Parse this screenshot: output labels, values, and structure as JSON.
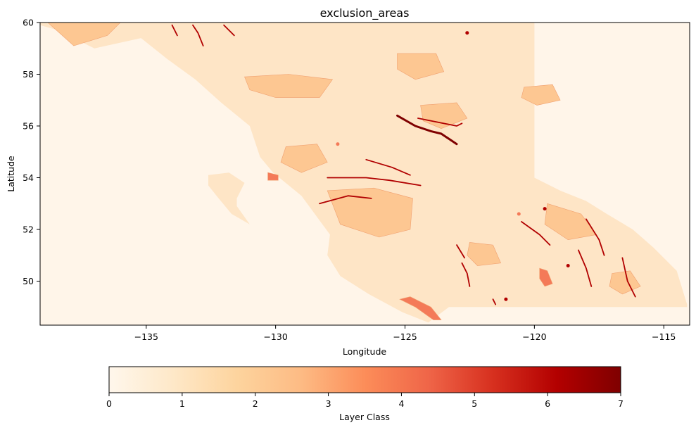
{
  "chart_data": {
    "type": "heatmap",
    "title": "exclusion_areas",
    "xlabel": "Longitude",
    "ylabel": "Latitude",
    "xlim": [
      -139.1,
      -114.0
    ],
    "ylim": [
      48.3,
      60.0
    ],
    "xticks": [
      -135,
      -130,
      -125,
      -120,
      -115
    ],
    "xtick_labels": [
      "−135",
      "−130",
      "−125",
      "−120",
      "−115"
    ],
    "yticks": [
      50,
      52,
      54,
      56,
      58,
      60
    ],
    "ytick_labels": [
      "50",
      "52",
      "54",
      "56",
      "58",
      "60"
    ],
    "grid": false,
    "colormap": "OrRd",
    "colormap_stops": [
      "#fff7ec",
      "#fee8c8",
      "#fdd49e",
      "#fdbb84",
      "#fc8d59",
      "#ef6548",
      "#d7301f",
      "#b30000",
      "#7f0000"
    ],
    "colorbar": {
      "label": "Layer Class",
      "range": [
        0,
        7
      ],
      "ticks": [
        0,
        1,
        2,
        3,
        4,
        5,
        6,
        7
      ],
      "tick_labels": [
        "0",
        "1",
        "2",
        "3",
        "4",
        "5",
        "6",
        "7"
      ],
      "orientation": "horizontal"
    },
    "class_colors": {
      "0": "#fff5e9",
      "1": "#fee5c6",
      "2": "#fdc792",
      "4": "#f47a58",
      "6": "#b10000",
      "7": "#7f0000"
    },
    "regions": [
      {
        "name": "province",
        "class": 1,
        "polygon": [
          [
            -139.1,
            60.0
          ],
          [
            -120.0,
            60.0
          ],
          [
            -120.0,
            54.0
          ],
          [
            -119.0,
            53.5
          ],
          [
            -118.0,
            53.1
          ],
          [
            -117.2,
            52.6
          ],
          [
            -116.2,
            52.0
          ],
          [
            -115.4,
            51.3
          ],
          [
            -114.5,
            50.4
          ],
          [
            -114.1,
            49.1
          ],
          [
            -114.1,
            49.0
          ],
          [
            -123.3,
            49.0
          ],
          [
            -124.1,
            48.4
          ],
          [
            -125.1,
            48.8
          ],
          [
            -126.4,
            49.5
          ],
          [
            -127.5,
            50.2
          ],
          [
            -128.0,
            51.0
          ],
          [
            -127.9,
            51.8
          ],
          [
            -129.0,
            53.3
          ],
          [
            -130.1,
            54.2
          ],
          [
            -130.6,
            54.8
          ],
          [
            -131.0,
            56.0
          ],
          [
            -132.1,
            56.9
          ],
          [
            -133.1,
            57.8
          ],
          [
            -134.2,
            58.6
          ],
          [
            -135.2,
            59.4
          ],
          [
            -137.0,
            59.0
          ],
          [
            -138.4,
            59.7
          ],
          [
            -139.1,
            59.9
          ]
        ]
      },
      {
        "name": "haida-gwaii",
        "class": 1,
        "polygon": [
          [
            -132.6,
            54.1
          ],
          [
            -131.8,
            54.2
          ],
          [
            -131.2,
            53.8
          ],
          [
            -131.5,
            53.2
          ],
          [
            -131.5,
            52.9
          ],
          [
            -131.0,
            52.2
          ],
          [
            -131.7,
            52.6
          ],
          [
            -132.2,
            53.2
          ],
          [
            -132.6,
            53.7
          ]
        ]
      },
      {
        "name": "exclusion-zone-a",
        "class": 2,
        "polygon": [
          [
            -131.2,
            57.9
          ],
          [
            -129.5,
            58.0
          ],
          [
            -127.8,
            57.8
          ],
          [
            -128.3,
            57.1
          ],
          [
            -130.0,
            57.1
          ],
          [
            -131.0,
            57.4
          ]
        ]
      },
      {
        "name": "exclusion-zone-b",
        "class": 2,
        "polygon": [
          [
            -128.0,
            53.5
          ],
          [
            -126.2,
            53.6
          ],
          [
            -124.7,
            53.2
          ],
          [
            -124.8,
            52.0
          ],
          [
            -126.0,
            51.7
          ],
          [
            -127.5,
            52.2
          ]
        ]
      },
      {
        "name": "exclusion-zone-c",
        "class": 2,
        "polygon": [
          [
            -125.3,
            58.8
          ],
          [
            -123.8,
            58.8
          ],
          [
            -123.5,
            58.1
          ],
          [
            -124.6,
            57.8
          ],
          [
            -125.3,
            58.2
          ]
        ]
      },
      {
        "name": "exclusion-zone-d",
        "class": 2,
        "polygon": [
          [
            -129.6,
            55.2
          ],
          [
            -128.4,
            55.3
          ],
          [
            -128.0,
            54.6
          ],
          [
            -129.0,
            54.2
          ],
          [
            -129.8,
            54.6
          ]
        ]
      },
      {
        "name": "exclusion-zone-e",
        "class": 2,
        "polygon": [
          [
            -119.5,
            53.0
          ],
          [
            -118.2,
            52.6
          ],
          [
            -117.6,
            51.8
          ],
          [
            -118.7,
            51.6
          ],
          [
            -119.6,
            52.2
          ]
        ]
      },
      {
        "name": "exclusion-zone-f",
        "class": 2,
        "polygon": [
          [
            -124.4,
            56.8
          ],
          [
            -123.0,
            56.9
          ],
          [
            -122.6,
            56.3
          ],
          [
            -123.6,
            55.9
          ],
          [
            -124.3,
            56.2
          ]
        ]
      },
      {
        "name": "exclusion-zone-g",
        "class": 2,
        "polygon": [
          [
            -136.0,
            60.0
          ],
          [
            -138.8,
            60.0
          ],
          [
            -137.8,
            59.1
          ],
          [
            -136.5,
            59.5
          ]
        ]
      },
      {
        "name": "exclusion-zone-h",
        "class": 2,
        "polygon": [
          [
            -120.4,
            57.5
          ],
          [
            -119.3,
            57.6
          ],
          [
            -119.0,
            57.0
          ],
          [
            -119.9,
            56.8
          ],
          [
            -120.5,
            57.1
          ]
        ]
      },
      {
        "name": "exclusion-zone-i",
        "class": 2,
        "polygon": [
          [
            -122.5,
            51.5
          ],
          [
            -121.6,
            51.4
          ],
          [
            -121.3,
            50.7
          ],
          [
            -122.2,
            50.6
          ],
          [
            -122.6,
            51.0
          ]
        ]
      },
      {
        "name": "exclusion-zone-j",
        "class": 2,
        "polygon": [
          [
            -117.0,
            50.3
          ],
          [
            -116.3,
            50.4
          ],
          [
            -115.9,
            49.8
          ],
          [
            -116.6,
            49.5
          ],
          [
            -117.1,
            49.8
          ]
        ]
      },
      {
        "name": "vancouver-island-south",
        "class": 4,
        "polygon": [
          [
            -125.2,
            49.3
          ],
          [
            -124.6,
            49.0
          ],
          [
            -123.9,
            48.5
          ],
          [
            -123.6,
            48.5
          ],
          [
            -124.0,
            49.0
          ],
          [
            -124.8,
            49.4
          ]
        ]
      },
      {
        "name": "okanagan-patch",
        "class": 4,
        "polygon": [
          [
            -119.8,
            50.5
          ],
          [
            -119.5,
            50.4
          ],
          [
            -119.3,
            49.9
          ],
          [
            -119.6,
            49.8
          ],
          [
            -119.8,
            50.1
          ]
        ]
      },
      {
        "name": "hecate-patch",
        "class": 4,
        "polygon": [
          [
            -130.3,
            54.2
          ],
          [
            -129.9,
            54.1
          ],
          [
            -129.9,
            53.9
          ],
          [
            -130.3,
            53.9
          ]
        ]
      }
    ],
    "lines": [
      {
        "class": 7,
        "points": [
          [
            -125.3,
            56.4
          ],
          [
            -124.6,
            56.0
          ],
          [
            -124.0,
            55.8
          ],
          [
            -123.6,
            55.7
          ],
          [
            -123.0,
            55.3
          ]
        ]
      },
      {
        "class": 6,
        "points": [
          [
            -124.5,
            56.3
          ],
          [
            -123.0,
            56.0
          ],
          [
            -122.8,
            56.1
          ]
        ]
      },
      {
        "class": 6,
        "points": [
          [
            -128.0,
            54.0
          ],
          [
            -126.5,
            54.0
          ],
          [
            -125.6,
            53.9
          ],
          [
            -124.4,
            53.7
          ]
        ]
      },
      {
        "class": 6,
        "points": [
          [
            -126.5,
            54.7
          ],
          [
            -125.5,
            54.4
          ],
          [
            -124.8,
            54.1
          ]
        ]
      },
      {
        "class": 6,
        "points": [
          [
            -128.3,
            53.0
          ],
          [
            -127.2,
            53.3
          ],
          [
            -126.3,
            53.2
          ]
        ]
      },
      {
        "class": 6,
        "points": [
          [
            -133.2,
            59.9
          ],
          [
            -133.0,
            59.6
          ],
          [
            -132.8,
            59.1
          ]
        ]
      },
      {
        "class": 6,
        "points": [
          [
            -132.0,
            59.9
          ],
          [
            -131.6,
            59.5
          ]
        ]
      },
      {
        "class": 6,
        "points": [
          [
            -134.0,
            59.9
          ],
          [
            -133.8,
            59.5
          ]
        ]
      },
      {
        "class": 6,
        "points": [
          [
            -118.0,
            52.4
          ],
          [
            -117.5,
            51.6
          ],
          [
            -117.3,
            51.0
          ]
        ]
      },
      {
        "class": 6,
        "points": [
          [
            -116.6,
            50.9
          ],
          [
            -116.4,
            50.0
          ],
          [
            -116.1,
            49.4
          ]
        ]
      },
      {
        "class": 6,
        "points": [
          [
            -118.3,
            51.2
          ],
          [
            -118.0,
            50.5
          ],
          [
            -117.8,
            49.8
          ]
        ]
      },
      {
        "class": 6,
        "points": [
          [
            -122.8,
            50.7
          ],
          [
            -122.6,
            50.3
          ],
          [
            -122.5,
            49.8
          ]
        ]
      },
      {
        "class": 6,
        "points": [
          [
            -123.0,
            51.4
          ],
          [
            -122.7,
            50.9
          ]
        ]
      },
      {
        "class": 6,
        "points": [
          [
            -120.5,
            52.3
          ],
          [
            -119.8,
            51.8
          ],
          [
            -119.4,
            51.4
          ]
        ]
      },
      {
        "class": 6,
        "points": [
          [
            -121.6,
            49.3
          ],
          [
            -121.5,
            49.1
          ]
        ]
      }
    ],
    "dots": [
      {
        "class": 6,
        "at": [
          -122.6,
          59.6
        ]
      },
      {
        "class": 6,
        "at": [
          -118.7,
          50.6
        ]
      },
      {
        "class": 6,
        "at": [
          -119.6,
          52.8
        ]
      },
      {
        "class": 6,
        "at": [
          -121.1,
          49.3
        ]
      },
      {
        "class": 4,
        "at": [
          -120.6,
          52.6
        ]
      },
      {
        "class": 4,
        "at": [
          -127.6,
          55.3
        ]
      }
    ]
  }
}
